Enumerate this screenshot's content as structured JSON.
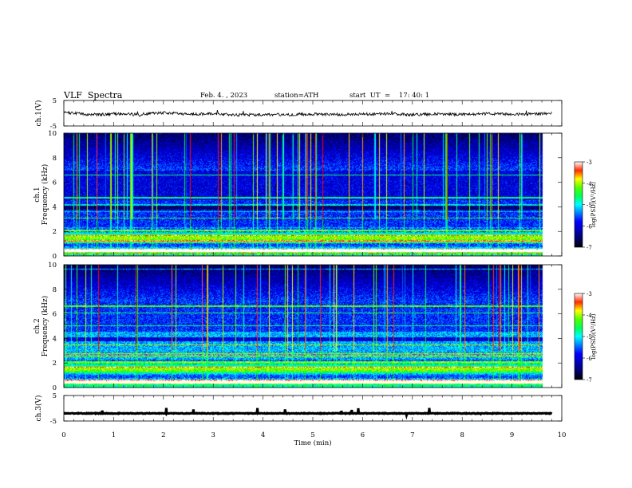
{
  "header": {
    "title": "VLF  Spectra",
    "date": "Feb. 4. , 2023",
    "station": "station=ATH",
    "start": "start  UT  =    17: 40: 1"
  },
  "colors": {
    "background": "#ffffff",
    "trace": "#000000",
    "colormap": [
      "#000000",
      "#000080",
      "#0000ff",
      "#00ffff",
      "#00ff00",
      "#ffff00",
      "#ff0000",
      "#ffffff"
    ]
  },
  "chart_data": [
    {
      "type": "line",
      "name": "ch1-voltage",
      "ylabel": "ch.1(V)",
      "ylim": [
        -5,
        5
      ],
      "yticks": [
        "5",
        "-5"
      ],
      "xlim": [
        0,
        10
      ],
      "data_end": 9.8,
      "x": [
        0.0,
        0.5,
        1.0,
        1.5,
        2.0,
        2.5,
        3.0,
        3.5,
        4.0,
        4.5,
        5.0,
        5.5,
        6.0,
        6.5,
        7.0,
        7.5,
        8.0,
        8.5,
        9.0,
        9.5,
        9.8
      ],
      "values": [
        0.4,
        -0.6,
        -0.3,
        -0.5,
        0.2,
        -0.4,
        -0.2,
        -0.7,
        -0.5,
        -0.6,
        -0.3,
        -0.5,
        -0.4,
        -0.2,
        -0.6,
        -0.3,
        -0.5,
        -0.2,
        -0.4,
        -0.3,
        0.1
      ]
    },
    {
      "type": "heatmap",
      "name": "ch1-spectrogram",
      "ylabel_lines": [
        "ch.1",
        "Frequency (kHz)"
      ],
      "ylim": [
        0,
        10
      ],
      "yticks": [
        "0",
        "2",
        "4",
        "6",
        "8",
        "10"
      ],
      "xlim": [
        0,
        10
      ],
      "data_end": 9.8,
      "colorbar": {
        "label": "log(PSD)(V²/Hz)",
        "range": [
          -7,
          -3
        ],
        "ticks": [
          "-3",
          "-4",
          "-5",
          "-6",
          "-7"
        ]
      }
    },
    {
      "type": "heatmap",
      "name": "ch2-spectrogram",
      "ylabel_lines": [
        "ch.2",
        "Frequency (kHz)"
      ],
      "ylim": [
        0,
        10
      ],
      "yticks": [
        "0",
        "2",
        "4",
        "6",
        "8",
        "10"
      ],
      "xlim": [
        0,
        10
      ],
      "data_end": 9.8,
      "colorbar": {
        "label": "log(PSD)(V²/Hz)",
        "range": [
          -7,
          -3
        ],
        "ticks": [
          "-3",
          "-4",
          "-5",
          "-6",
          "-7"
        ]
      }
    },
    {
      "type": "line",
      "name": "ch3-voltage",
      "ylabel": "ch.3(V)",
      "ylim": [
        -5,
        5
      ],
      "yticks": [
        "5",
        "-5"
      ],
      "xlim": [
        0,
        10
      ],
      "data_end": 9.8,
      "x": [
        0,
        9.8
      ],
      "values": [
        -2,
        -2
      ],
      "xlabel": "Time  (min)",
      "xticks": [
        "0",
        "1",
        "2",
        "3",
        "4",
        "5",
        "6",
        "7",
        "8",
        "9",
        "10"
      ]
    }
  ]
}
